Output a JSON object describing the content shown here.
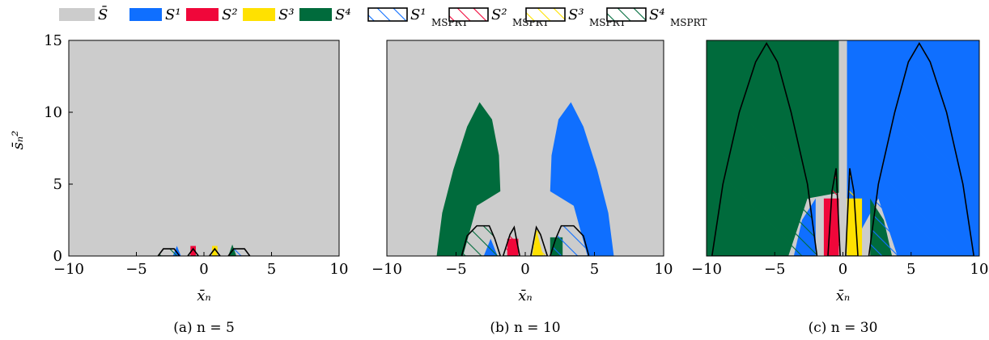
{
  "legend": {
    "placement": "top",
    "entries": [
      {
        "key": "S_bar",
        "label": "S̄",
        "color": "#cccccc",
        "hatched": false
      },
      {
        "key": "S1",
        "label": "S¹",
        "color": "#0f6fff",
        "hatched": false
      },
      {
        "key": "S2",
        "label": "S²",
        "color": "#f0073a",
        "hatched": false
      },
      {
        "key": "S3",
        "label": "S³",
        "color": "#ffe100",
        "hatched": false
      },
      {
        "key": "S4",
        "label": "S⁴",
        "color": "#006b3c",
        "hatched": false
      },
      {
        "key": "S1_MSPRT",
        "label": "S¹",
        "sub": "MSPRT",
        "color": "#0f6fff",
        "hatched": true
      },
      {
        "key": "S2_MSPRT",
        "label": "S²",
        "sub": "MSPRT",
        "color": "#f0073a",
        "hatched": true
      },
      {
        "key": "S3_MSPRT",
        "label": "S³",
        "sub": "MSPRT",
        "color": "#ffe100",
        "hatched": true
      },
      {
        "key": "S4_MSPRT",
        "label": "S⁴",
        "sub": "MSPRT",
        "color": "#006b3c",
        "hatched": true
      }
    ]
  },
  "chart_data": [
    {
      "type": "area",
      "caption": "(a) n = 5",
      "xlabel": "x̄ₙ",
      "ylabel": "s̄ₙ²",
      "xlim": [
        -10,
        10
      ],
      "ylim": [
        0,
        15
      ],
      "xticks": [
        -10,
        -5,
        0,
        5,
        10
      ],
      "yticks": [
        0,
        5,
        10,
        15
      ],
      "background": "S_bar",
      "regions": [
        {
          "key": "S1",
          "points": [
            [
              -2.3,
              0
            ],
            [
              -2.0,
              0.7
            ],
            [
              -1.7,
              0
            ]
          ]
        },
        {
          "key": "S2",
          "points": [
            [
              -1.0,
              0
            ],
            [
              -1.0,
              0.7
            ],
            [
              -0.6,
              0.7
            ],
            [
              -0.6,
              0
            ]
          ]
        },
        {
          "key": "S3",
          "points": [
            [
              0.6,
              0
            ],
            [
              0.6,
              0.7
            ],
            [
              1.0,
              0.7
            ],
            [
              1.0,
              0
            ]
          ]
        },
        {
          "key": "S4",
          "points": [
            [
              1.8,
              0
            ],
            [
              2.1,
              0.8
            ],
            [
              2.4,
              0
            ]
          ]
        }
      ],
      "msprt": [
        {
          "key": "S4",
          "points": [
            [
              -3.4,
              0
            ],
            [
              -3.0,
              0.5
            ],
            [
              -2.2,
              0.5
            ],
            [
              -1.8,
              0
            ]
          ]
        },
        {
          "key": "S2",
          "points": [
            [
              -1.2,
              0
            ],
            [
              -0.8,
              0.5
            ],
            [
              -0.4,
              0
            ]
          ]
        },
        {
          "key": "S3",
          "points": [
            [
              0.4,
              0
            ],
            [
              0.8,
              0.5
            ],
            [
              1.2,
              0
            ]
          ]
        },
        {
          "key": "S1",
          "points": [
            [
              1.8,
              0
            ],
            [
              2.2,
              0.5
            ],
            [
              3.0,
              0.5
            ],
            [
              3.4,
              0
            ]
          ]
        }
      ]
    },
    {
      "type": "area",
      "caption": "(b) n = 10",
      "xlabel": "x̄ₙ",
      "ylabel": "",
      "xlim": [
        -10,
        10
      ],
      "ylim": [
        0,
        15
      ],
      "xticks": [
        -10,
        -5,
        0,
        5,
        10
      ],
      "yticks": [],
      "background": "S_bar",
      "regions": [
        {
          "key": "S4",
          "points": [
            [
              -6.4,
              0
            ],
            [
              -6.0,
              3
            ],
            [
              -5.2,
              6
            ],
            [
              -4.2,
              9
            ],
            [
              -3.3,
              10.7
            ],
            [
              -2.4,
              9.5
            ],
            [
              -1.9,
              7
            ],
            [
              -1.8,
              4.5
            ],
            [
              -3.5,
              3.5
            ],
            [
              -4.5,
              0
            ]
          ]
        },
        {
          "key": "S1",
          "points": [
            [
              6.4,
              0
            ],
            [
              6.0,
              3
            ],
            [
              5.2,
              6
            ],
            [
              4.2,
              9
            ],
            [
              3.3,
              10.7
            ],
            [
              2.4,
              9.5
            ],
            [
              1.9,
              7
            ],
            [
              1.8,
              4.5
            ],
            [
              3.5,
              3.5
            ],
            [
              4.5,
              0
            ]
          ]
        },
        {
          "key": "S1",
          "points": [
            [
              -3.0,
              0
            ],
            [
              -2.5,
              1.2
            ],
            [
              -2.0,
              0
            ]
          ]
        },
        {
          "key": "S2",
          "points": [
            [
              -1.3,
              0
            ],
            [
              -1.3,
              1.2
            ],
            [
              -0.5,
              1.2
            ],
            [
              -0.5,
              0
            ]
          ]
        },
        {
          "key": "S3",
          "points": [
            [
              0.5,
              0
            ],
            [
              0.8,
              1.8
            ],
            [
              1.3,
              0
            ]
          ]
        },
        {
          "key": "S4",
          "points": [
            [
              1.8,
              0
            ],
            [
              1.8,
              1.3
            ],
            [
              2.7,
              1.3
            ],
            [
              2.7,
              0
            ]
          ]
        }
      ],
      "msprt": [
        {
          "key": "S4",
          "points": [
            [
              -4.6,
              0
            ],
            [
              -4.2,
              1.4
            ],
            [
              -3.5,
              2.1
            ],
            [
              -2.6,
              2.1
            ],
            [
              -2.2,
              1.2
            ],
            [
              -1.8,
              0
            ]
          ]
        },
        {
          "key": "S2",
          "points": [
            [
              -1.6,
              0
            ],
            [
              -1.1,
              1.5
            ],
            [
              -0.8,
              2.0
            ],
            [
              -0.4,
              0
            ]
          ]
        },
        {
          "key": "S3",
          "points": [
            [
              0.4,
              0
            ],
            [
              0.8,
              2.0
            ],
            [
              1.1,
              1.5
            ],
            [
              1.6,
              0
            ]
          ]
        },
        {
          "key": "S1",
          "points": [
            [
              1.8,
              0
            ],
            [
              2.2,
              1.2
            ],
            [
              2.6,
              2.1
            ],
            [
              3.5,
              2.1
            ],
            [
              4.2,
              1.4
            ],
            [
              4.6,
              0
            ]
          ]
        }
      ]
    },
    {
      "type": "area",
      "caption": "(c) n = 30",
      "xlabel": "x̄ₙ",
      "ylabel": "",
      "xlim": [
        -10,
        10
      ],
      "ylim": [
        0,
        15
      ],
      "xticks": [
        -10,
        -5,
        0,
        5,
        10
      ],
      "yticks": [],
      "background": "S_bar",
      "regions": [
        {
          "key": "S4",
          "points": [
            [
              -10,
              0
            ],
            [
              -10,
              15
            ],
            [
              -0.3,
              15
            ],
            [
              -0.3,
              4.4
            ],
            [
              -2.6,
              4.0
            ],
            [
              -4.0,
              0
            ]
          ]
        },
        {
          "key": "S1",
          "points": [
            [
              0.3,
              0
            ],
            [
              0.3,
              15
            ],
            [
              10,
              15
            ],
            [
              10,
              0
            ],
            [
              4.0,
              0
            ],
            [
              2.6,
              4.0
            ]
          ]
        },
        {
          "key": "S1",
          "points": [
            [
              -3.6,
              0
            ],
            [
              -3.0,
              2.5
            ],
            [
              -2.0,
              4.0
            ],
            [
              -2.0,
              0
            ]
          ]
        },
        {
          "key": "S2",
          "points": [
            [
              -1.4,
              0
            ],
            [
              -1.4,
              4.0
            ],
            [
              -0.3,
              4.0
            ],
            [
              -0.3,
              0
            ]
          ]
        },
        {
          "key": "S3",
          "points": [
            [
              0.3,
              0
            ],
            [
              0.3,
              4.0
            ],
            [
              1.4,
              4.0
            ],
            [
              1.4,
              0
            ]
          ]
        },
        {
          "key": "S4",
          "points": [
            [
              2.0,
              0
            ],
            [
              2.0,
              4.0
            ],
            [
              3.0,
              2.5
            ],
            [
              3.6,
              0
            ]
          ]
        }
      ],
      "msprt": [
        {
          "key": "S4",
          "points": [
            [
              -9.6,
              0
            ],
            [
              -8.8,
              5
            ],
            [
              -7.6,
              10
            ],
            [
              -6.4,
              13.5
            ],
            [
              -5.6,
              14.8
            ],
            [
              -4.8,
              13.5
            ],
            [
              -3.8,
              10
            ],
            [
              -2.6,
              5
            ],
            [
              -1.9,
              0
            ]
          ]
        },
        {
          "key": "S1",
          "points": [
            [
              1.9,
              0
            ],
            [
              2.6,
              5
            ],
            [
              3.8,
              10
            ],
            [
              4.8,
              13.5
            ],
            [
              5.6,
              14.8
            ],
            [
              6.4,
              13.5
            ],
            [
              7.6,
              10
            ],
            [
              8.8,
              5
            ],
            [
              9.6,
              0
            ]
          ]
        },
        {
          "key": "S2",
          "points": [
            [
              -1.1,
              0
            ],
            [
              -0.8,
              4.5
            ],
            [
              -0.5,
              6.1
            ],
            [
              -0.2,
              0
            ]
          ]
        },
        {
          "key": "S3",
          "points": [
            [
              0.2,
              0
            ],
            [
              0.5,
              6.1
            ],
            [
              0.8,
              4.5
            ],
            [
              1.1,
              0
            ]
          ]
        }
      ]
    }
  ]
}
